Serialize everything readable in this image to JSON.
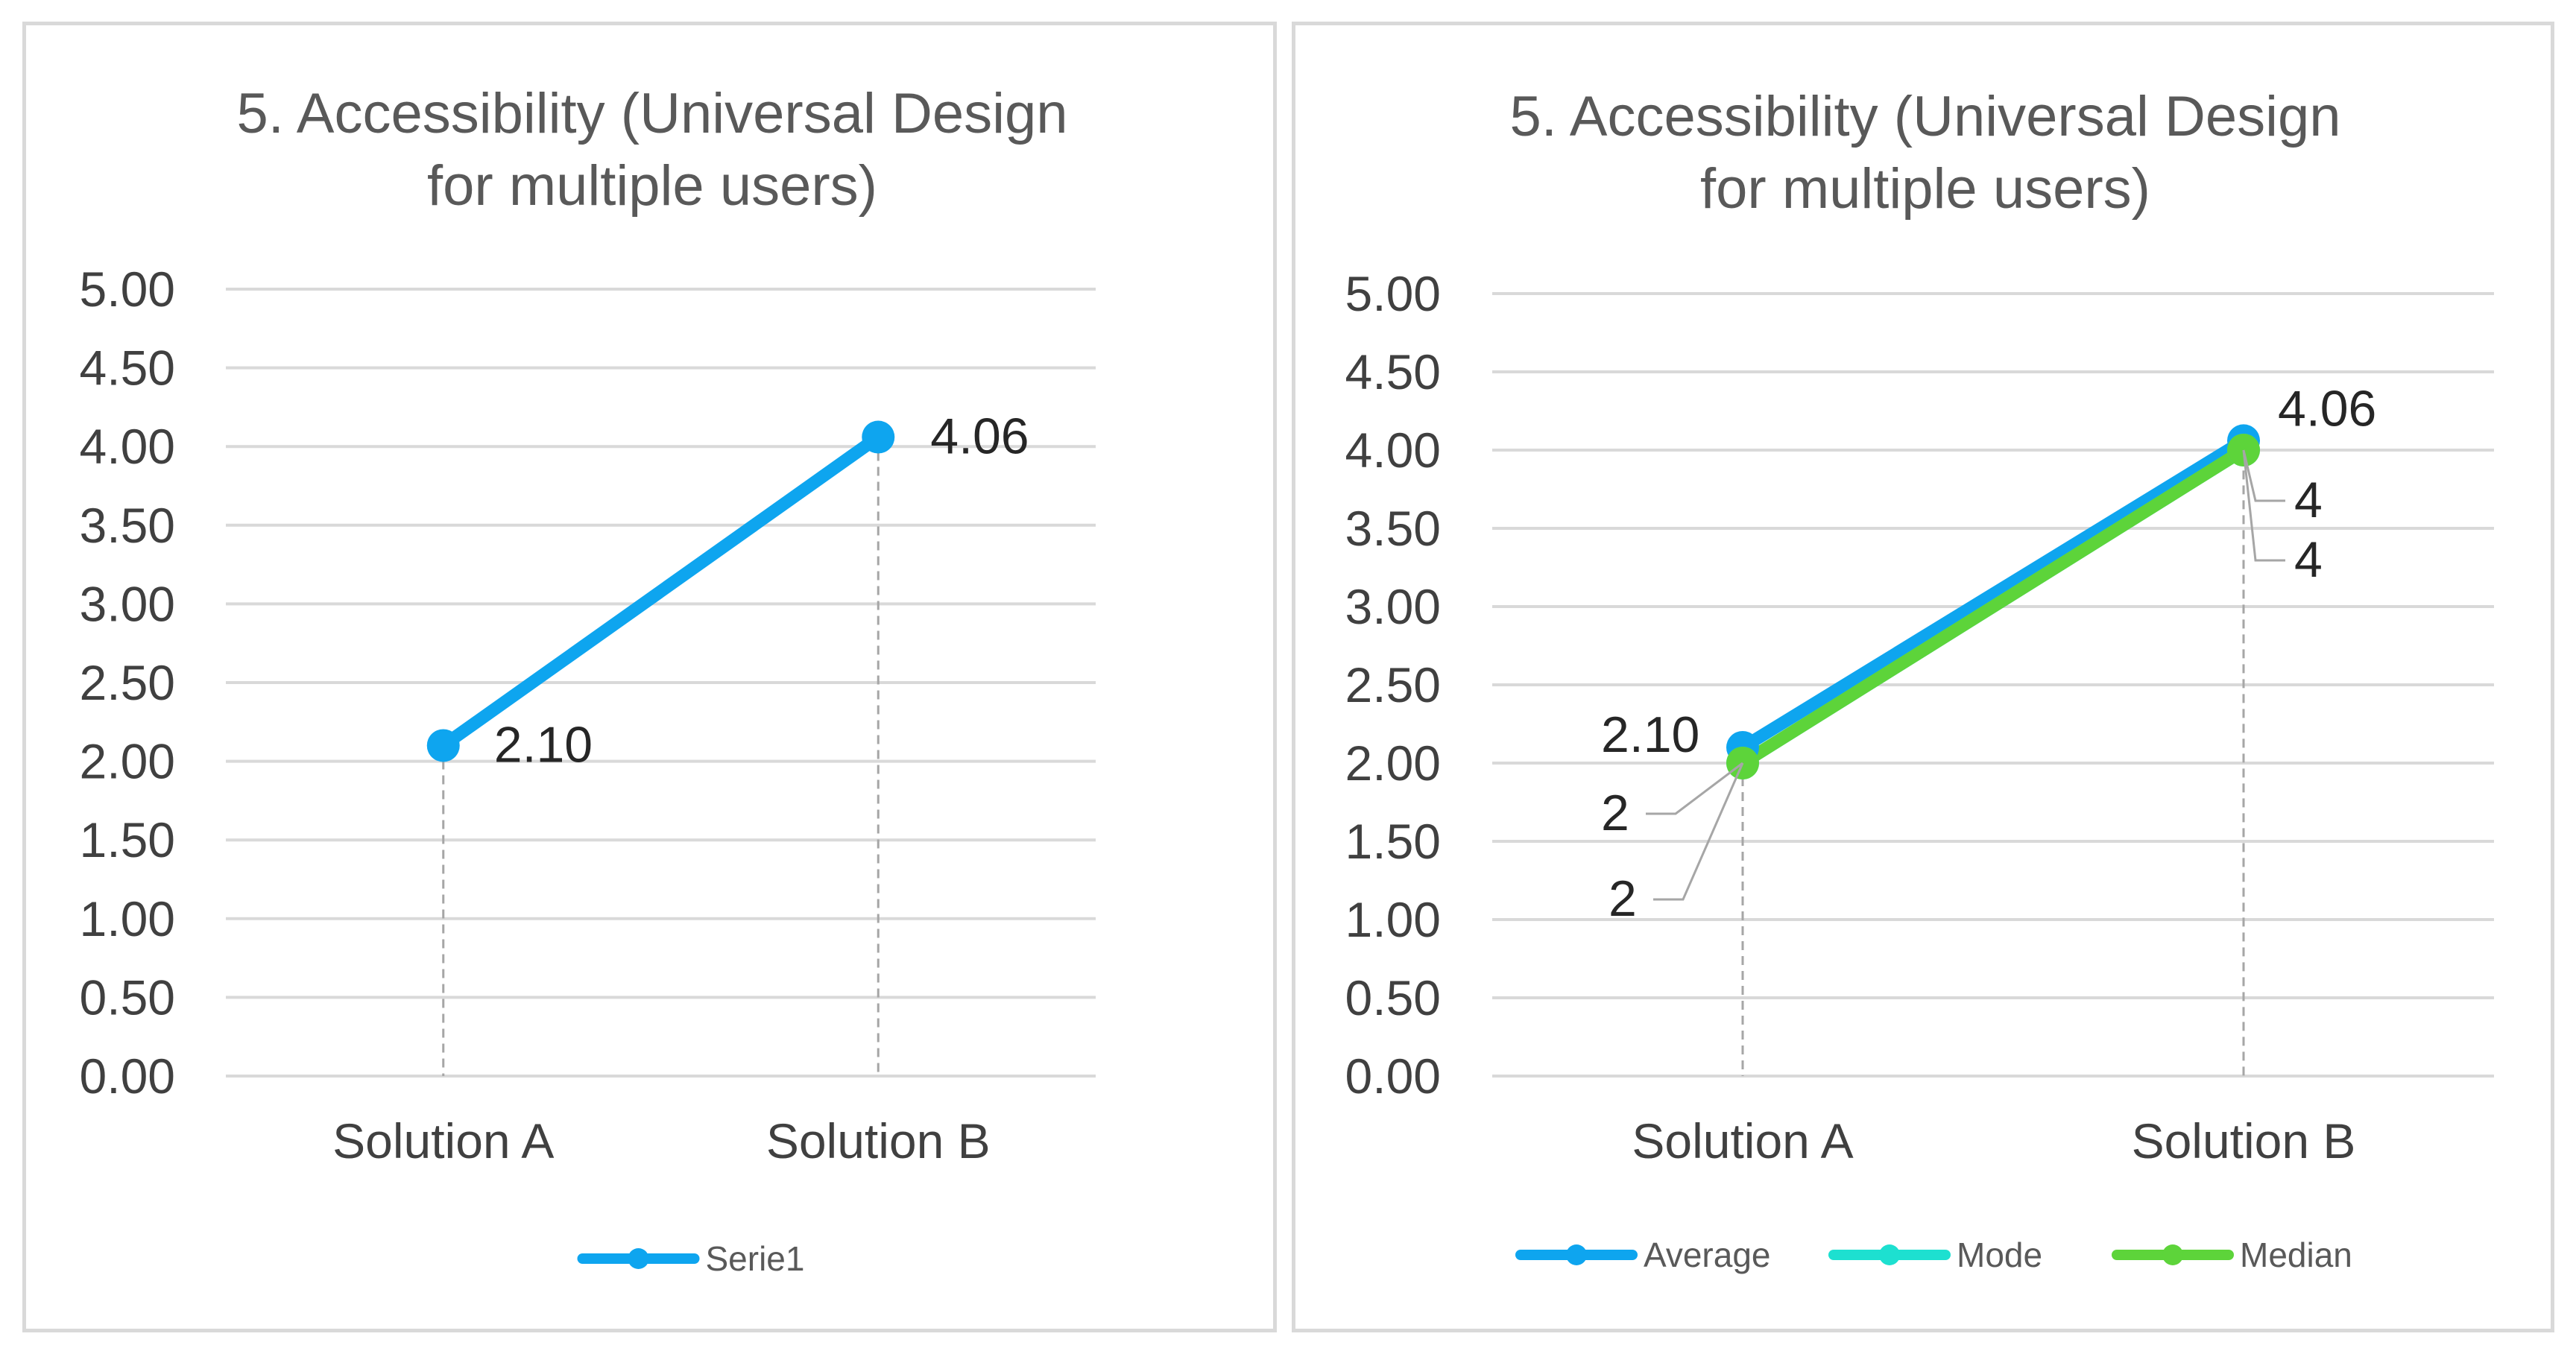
{
  "chart_data": [
    {
      "type": "line",
      "title_lines": [
        "5. Accessibility (Universal Design",
        "for multiple users)"
      ],
      "categories": [
        "Solution A",
        "Solution B"
      ],
      "y_ticks": [
        "0.00",
        "0.50",
        "1.00",
        "1.50",
        "2.00",
        "2.50",
        "3.00",
        "3.50",
        "4.00",
        "4.50",
        "5.00"
      ],
      "ylim": [
        0,
        5
      ],
      "grid": true,
      "drop_lines": true,
      "legend_position": "bottom",
      "series": [
        {
          "name": "Serie1",
          "values": [
            2.1,
            4.06
          ],
          "labels": [
            "2.10",
            "4.06"
          ],
          "color": "#0ea5ef"
        }
      ]
    },
    {
      "type": "line",
      "title_lines": [
        "5. Accessibility (Universal Design",
        "for multiple users)"
      ],
      "categories": [
        "Solution A",
        "Solution B"
      ],
      "y_ticks": [
        "0.00",
        "0.50",
        "1.00",
        "1.50",
        "2.00",
        "2.50",
        "3.00",
        "3.50",
        "4.00",
        "4.50",
        "5.00"
      ],
      "ylim": [
        0,
        5
      ],
      "grid": true,
      "drop_lines": true,
      "legend_position": "bottom",
      "series": [
        {
          "name": "Average",
          "values": [
            2.1,
            4.06
          ],
          "labels": [
            "2.10",
            "4.06"
          ],
          "color": "#0ea5ef"
        },
        {
          "name": "Mode",
          "values": [
            2,
            4
          ],
          "labels": [
            "2",
            "4"
          ],
          "color": "#1de0d0"
        },
        {
          "name": "Median",
          "values": [
            2,
            4
          ],
          "labels": [
            "2",
            "4"
          ],
          "color": "#5dd43a"
        }
      ]
    }
  ]
}
